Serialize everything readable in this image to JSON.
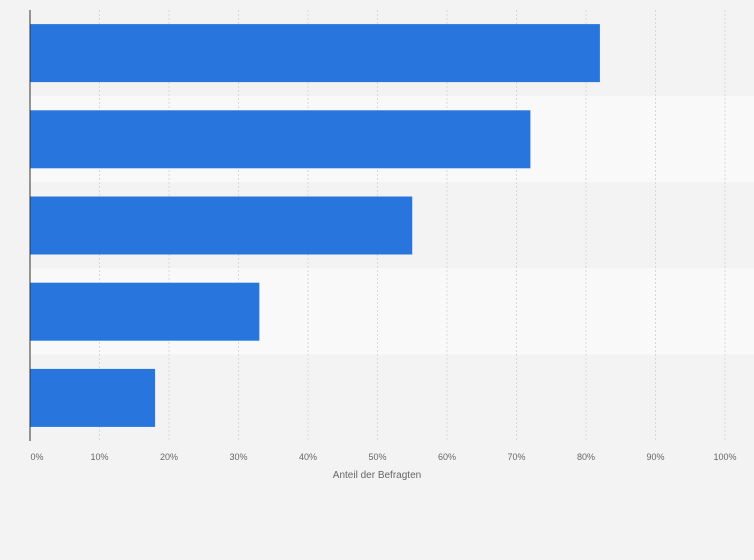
{
  "chart_data": {
    "type": "bar",
    "orientation": "horizontal",
    "categories": [
      "",
      "",
      "",
      "",
      ""
    ],
    "values": [
      82,
      72,
      55,
      33,
      18
    ],
    "xlabel": "Anteil der Befragten",
    "ylabel": "",
    "xlim": [
      0,
      100
    ],
    "xticks": [
      "0%",
      "10%",
      "20%",
      "30%",
      "40%",
      "50%",
      "60%",
      "70%",
      "80%",
      "90%",
      "100%"
    ],
    "grid": true,
    "legend": "none",
    "bar_color": "#2876dd",
    "band_colors": [
      "#f3f3f3",
      "#f9f9f9"
    ]
  }
}
